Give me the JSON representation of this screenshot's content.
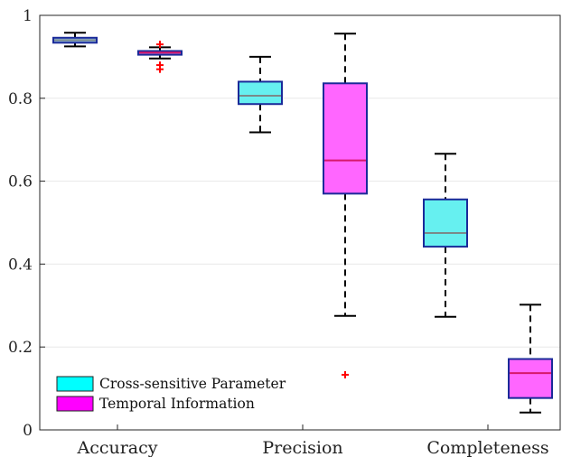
{
  "chart_data": {
    "type": "box",
    "title": "",
    "xlabel": "",
    "ylabel": "",
    "ylim": [
      0,
      1
    ],
    "yticks": [
      0,
      0.2,
      0.4,
      0.6,
      0.8,
      1
    ],
    "ytick_labels": [
      "0",
      "0.2",
      "0.4",
      "0.6",
      "0.8",
      "1"
    ],
    "grid": "horizontal",
    "legend_position": "bottom-left",
    "categories": [
      "Accuracy",
      "Precision",
      "Completeness"
    ],
    "series": [
      {
        "name": "Cross-sensitive Parameter",
        "fill": "#66f0f0",
        "accuracy_fill": "#8db7e8",
        "edge": "#1a2a99",
        "median_color": "#7a8a8a",
        "boxes": [
          {
            "category": "Accuracy",
            "whisker_low": 0.925,
            "q1": 0.934,
            "median": 0.94,
            "q3": 0.946,
            "whisker_high": 0.958,
            "outliers": []
          },
          {
            "category": "Precision",
            "whisker_low": 0.718,
            "q1": 0.786,
            "median": 0.806,
            "q3": 0.84,
            "whisker_high": 0.9,
            "outliers": []
          },
          {
            "category": "Completeness",
            "whisker_low": 0.273,
            "q1": 0.442,
            "median": 0.475,
            "q3": 0.556,
            "whisker_high": 0.666,
            "outliers": []
          }
        ]
      },
      {
        "name": "Temporal Information",
        "fill": "#ff66ff",
        "accuracy_fill": "#c77fe0",
        "edge": "#1a2a99",
        "median_color": "#d6186c",
        "boxes": [
          {
            "category": "Accuracy",
            "whisker_low": 0.896,
            "q1": 0.905,
            "median": 0.91,
            "q3": 0.914,
            "whisker_high": 0.923,
            "outliers": [
              0.93,
              0.88,
              0.87
            ]
          },
          {
            "category": "Precision",
            "whisker_low": 0.275,
            "q1": 0.57,
            "median": 0.65,
            "q3": 0.836,
            "whisker_high": 0.956,
            "outliers": [
              0.133
            ]
          },
          {
            "category": "Completeness",
            "whisker_low": 0.042,
            "q1": 0.077,
            "median": 0.137,
            "q3": 0.171,
            "whisker_high": 0.302,
            "outliers": []
          }
        ]
      }
    ],
    "legend_swatches": [
      "#00ffff",
      "#ff00ff"
    ],
    "outlier_color": "#ff0000"
  }
}
